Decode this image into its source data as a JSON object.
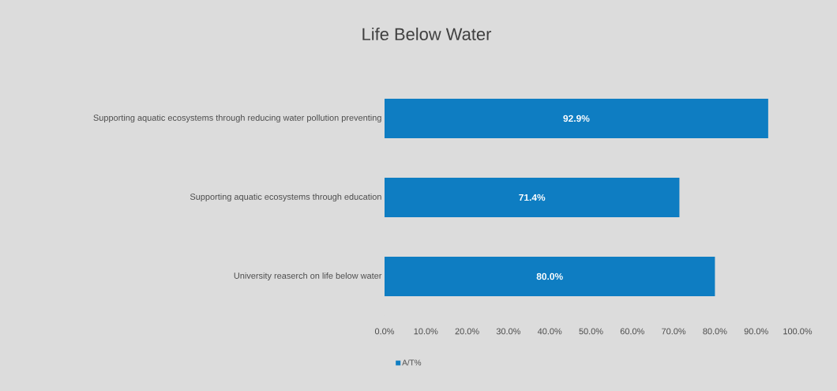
{
  "chart_data": {
    "type": "bar",
    "orientation": "horizontal",
    "title": "Life Below Water",
    "categories": [
      "Supporting aquatic ecosystems through reducing water pollution preventing",
      "Supporting aquatic ecosystems through education",
      "University reaserch on life below water"
    ],
    "series": [
      {
        "name": "A/T%",
        "color": "#0e7dc2",
        "values": [
          92.9,
          71.4,
          80.0
        ],
        "value_labels": [
          "92.9%",
          "71.4%",
          "80.0%"
        ]
      }
    ],
    "xlim": [
      0,
      100
    ],
    "xticks": [
      {
        "value": 0,
        "label": "0.0%"
      },
      {
        "value": 10,
        "label": "10.0%"
      },
      {
        "value": 20,
        "label": "20.0%"
      },
      {
        "value": 30,
        "label": "30.0%"
      },
      {
        "value": 40,
        "label": "40.0%"
      },
      {
        "value": 50,
        "label": "50.0%"
      },
      {
        "value": 60,
        "label": "60.0%"
      },
      {
        "value": 70,
        "label": "70.0%"
      },
      {
        "value": 80,
        "label": "80.0%"
      },
      {
        "value": 90,
        "label": "90.0%"
      },
      {
        "value": 100,
        "label": "100.0%"
      }
    ],
    "legend": "bottom",
    "grid": false
  }
}
